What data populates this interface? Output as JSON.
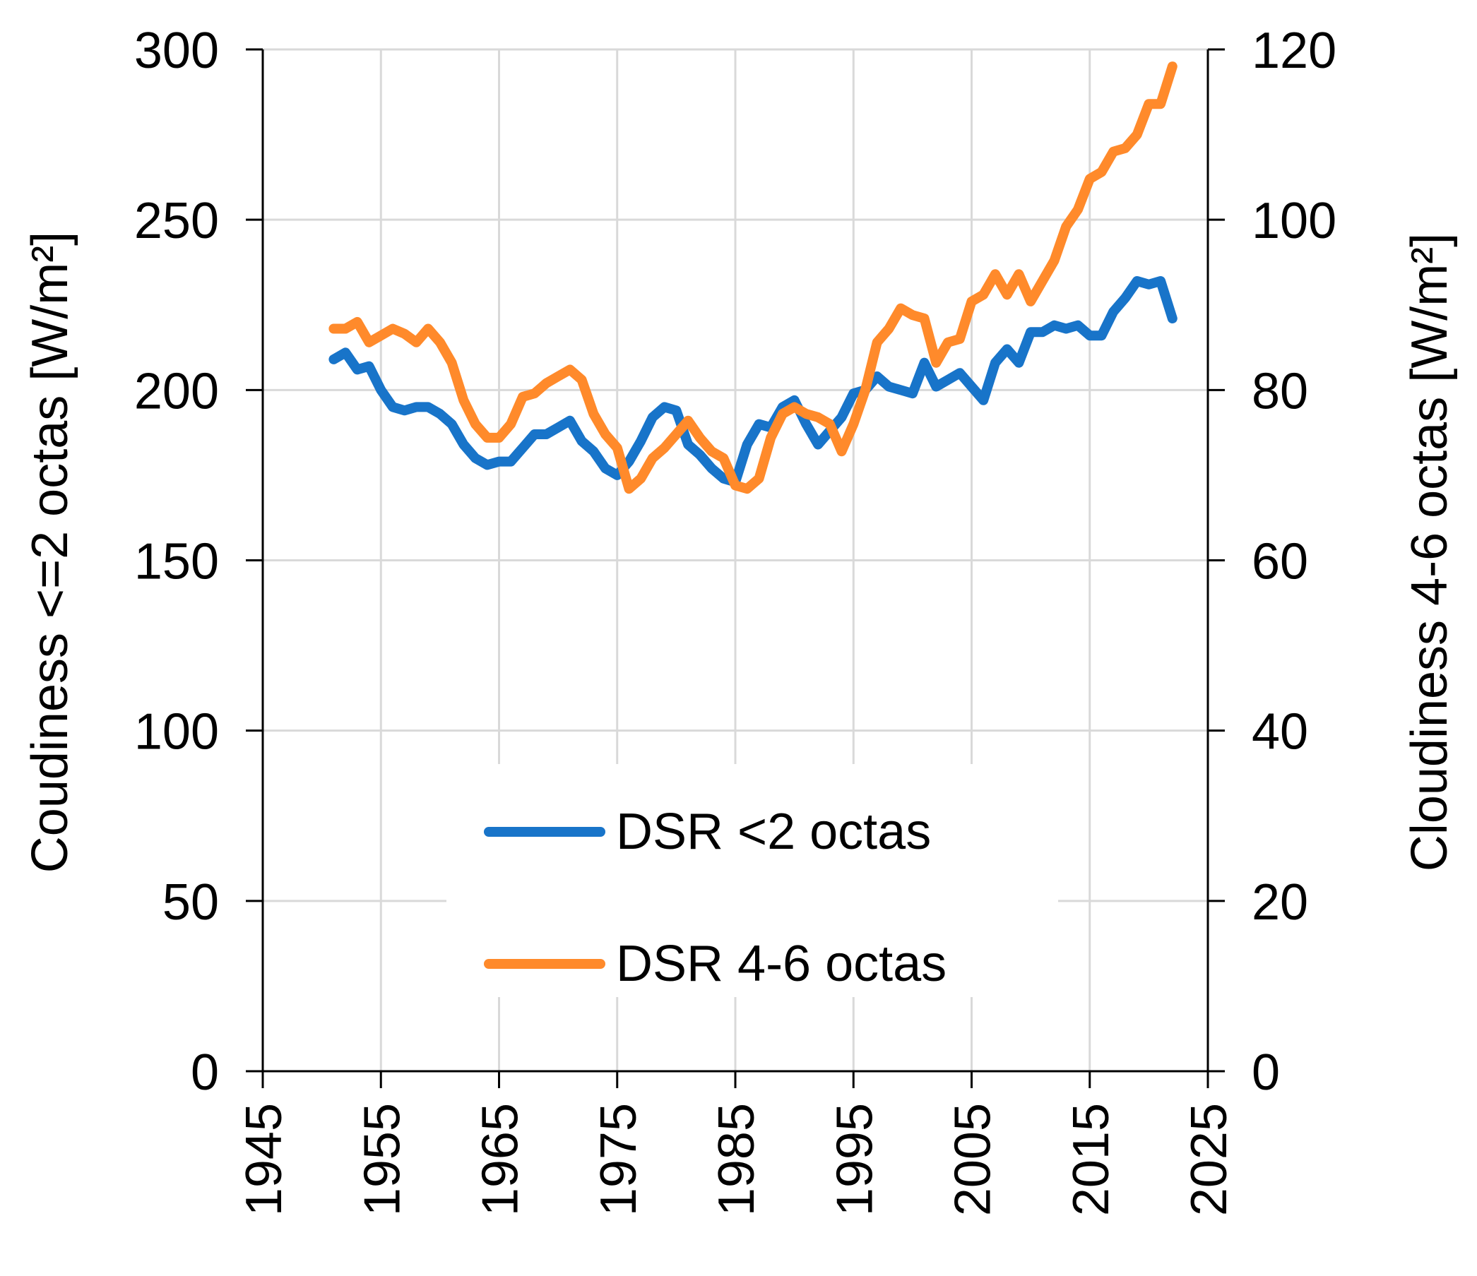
{
  "chart_data": {
    "type": "line",
    "title": "",
    "xlabel": "",
    "ylabel_left": "Coudiness <=2 octas [W/m²]",
    "ylabel_right": "Cloudiness 4-6 octas [W/m²]",
    "xlim": [
      1945,
      2025
    ],
    "ylim_left": [
      0,
      300
    ],
    "ylim_right": [
      0,
      120
    ],
    "xticks": [
      "1945",
      "1955",
      "1965",
      "1975",
      "1985",
      "1995",
      "2005",
      "2015",
      "2025"
    ],
    "yticks_left": [
      "0",
      "50",
      "100",
      "150",
      "200",
      "250",
      "300"
    ],
    "yticks_right": [
      "0",
      "20",
      "40",
      "60",
      "80",
      "100",
      "120"
    ],
    "grid": true,
    "legend_position": "bottom-center",
    "colors": {
      "series_blue": "#1874c9",
      "series_orange": "#ff8a2b",
      "grid": "#d9d9d9",
      "axis": "#000000"
    },
    "series": [
      {
        "name": "DSR <2 octas",
        "axis": "left",
        "x": [
          1951,
          1952,
          1953,
          1954,
          1955,
          1956,
          1957,
          1958,
          1959,
          1960,
          1961,
          1962,
          1963,
          1964,
          1965,
          1966,
          1967,
          1968,
          1969,
          1970,
          1971,
          1972,
          1973,
          1974,
          1975,
          1976,
          1977,
          1978,
          1979,
          1980,
          1981,
          1982,
          1983,
          1984,
          1985,
          1986,
          1987,
          1988,
          1989,
          1990,
          1991,
          1992,
          1993,
          1994,
          1995,
          1996,
          1997,
          1998,
          1999,
          2000,
          2001,
          2002,
          2003,
          2004,
          2005,
          2006,
          2007,
          2008,
          2009,
          2010,
          2011,
          2012,
          2013,
          2014,
          2015,
          2016,
          2017,
          2018,
          2019,
          2020,
          2021,
          2022
        ],
        "values": [
          209,
          211,
          206,
          207,
          200,
          195,
          194,
          195,
          195,
          193,
          190,
          184,
          180,
          178,
          179,
          179,
          183,
          187,
          187,
          189,
          191,
          185,
          182,
          177,
          175,
          179,
          185,
          192,
          195,
          194,
          184,
          181,
          177,
          174,
          173,
          184,
          190,
          189,
          195,
          197,
          190,
          184,
          188,
          192,
          199,
          200,
          204,
          201,
          200,
          199,
          208,
          201,
          203,
          205,
          201,
          197,
          208,
          212,
          208,
          217,
          217,
          219,
          218,
          219,
          216,
          216,
          223,
          227,
          232,
          231,
          232,
          221
        ]
      },
      {
        "name": "DSR 4-6 octas",
        "axis": "right",
        "x": [
          1951,
          1952,
          1953,
          1954,
          1955,
          1956,
          1957,
          1958,
          1959,
          1960,
          1961,
          1962,
          1963,
          1964,
          1965,
          1966,
          1967,
          1968,
          1969,
          1970,
          1971,
          1972,
          1973,
          1974,
          1975,
          1976,
          1977,
          1978,
          1979,
          1980,
          1981,
          1982,
          1983,
          1984,
          1985,
          1986,
          1987,
          1988,
          1989,
          1990,
          1991,
          1992,
          1993,
          1994,
          1995,
          1996,
          1997,
          1998,
          1999,
          2000,
          2001,
          2002,
          2003,
          2004,
          2005,
          2006,
          2007,
          2008,
          2009,
          2010,
          2011,
          2012,
          2013,
          2014,
          2015,
          2016,
          2017,
          2018,
          2019,
          2020,
          2021,
          2022
        ],
        "values": [
          87.2,
          87.2,
          88.0,
          85.6,
          86.4,
          87.2,
          86.6,
          85.6,
          87.2,
          85.6,
          83.2,
          78.8,
          76.0,
          74.4,
          74.4,
          76.0,
          79.2,
          79.6,
          80.8,
          81.6,
          82.4,
          81.2,
          77.2,
          74.8,
          73.2,
          68.4,
          69.6,
          72.0,
          73.2,
          74.8,
          76.4,
          74.4,
          72.8,
          72.0,
          68.8,
          68.4,
          69.6,
          74.4,
          77.2,
          78.0,
          77.2,
          76.8,
          76.0,
          72.8,
          76.0,
          80.0,
          85.6,
          87.2,
          89.6,
          88.8,
          88.4,
          83.2,
          85.6,
          86.0,
          90.4,
          91.2,
          93.6,
          91.2,
          93.6,
          90.4,
          92.8,
          95.2,
          99.2,
          101.2,
          104.8,
          105.6,
          108.0,
          108.4,
          110.0,
          113.6,
          113.6,
          118.0
        ]
      }
    ]
  }
}
